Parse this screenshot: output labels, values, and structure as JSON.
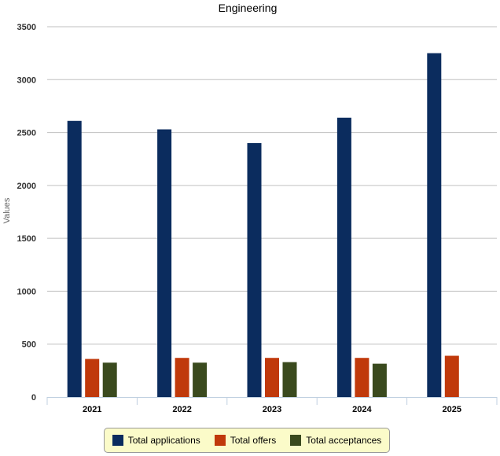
{
  "chart_data": {
    "type": "bar",
    "title": "Engineering",
    "xlabel": "",
    "ylabel": "Values",
    "ylim": [
      0,
      3500
    ],
    "yticks": [
      "0",
      "500",
      "1000",
      "1500",
      "2000",
      "2500",
      "3000",
      "3500"
    ],
    "categories": [
      "2021",
      "2022",
      "2023",
      "2024",
      "2025"
    ],
    "grid": true,
    "legend_position": "bottom",
    "series": [
      {
        "name": "Total applications",
        "color": "#0b2c5e",
        "values": [
          2610,
          2530,
          2400,
          2640,
          3250
        ]
      },
      {
        "name": "Total offers",
        "color": "#c0390b",
        "values": [
          360,
          370,
          370,
          370,
          390
        ]
      },
      {
        "name": "Total acceptances",
        "color": "#3a4a1e",
        "values": [
          325,
          325,
          330,
          315,
          null
        ]
      }
    ]
  }
}
